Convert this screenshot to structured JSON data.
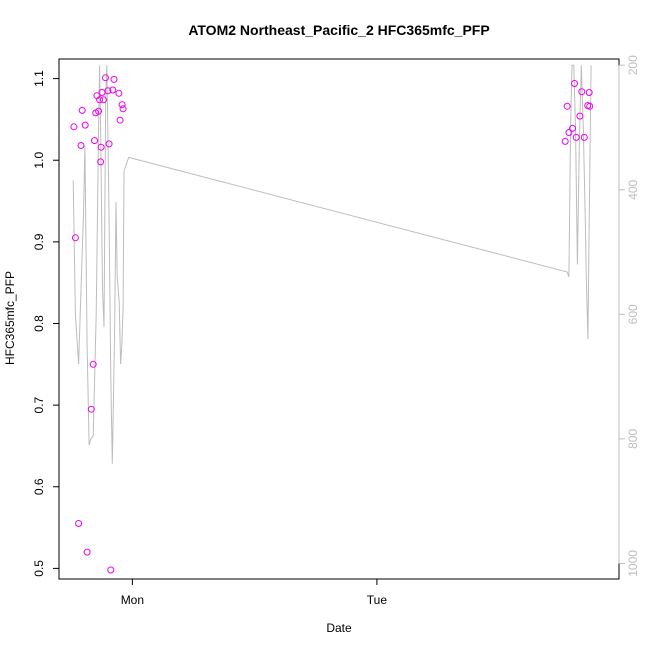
{
  "chart_data": {
    "type": "scatter",
    "title": "ATOM2 Northeast_Pacific_2 HFC365mfc_PFP",
    "xlabel": "Date",
    "ylabel": "HFC365mfc_PFP",
    "x_unit": "days since Sunday 00:00",
    "xlim": [
      0.7,
      2.99
    ],
    "ylim": [
      0.487,
      1.124
    ],
    "x_ticks": [
      {
        "value": 1.0,
        "label": "Mon"
      },
      {
        "value": 2.0,
        "label": "Tue"
      }
    ],
    "y_ticks": [
      0.5,
      0.6,
      0.7,
      0.8,
      0.9,
      1.0,
      1.1
    ],
    "right_axis": {
      "color": "#bdbdbd",
      "ylim": [
        1025,
        190
      ],
      "ticks": [
        200,
        400,
        600,
        800,
        1000
      ]
    },
    "colors": {
      "points": "#ee00ee",
      "line": "#bdbdbd",
      "box": "#000000"
    },
    "series": [
      {
        "type": "scatter",
        "points": [
          [
            0.761,
            1.041
          ],
          [
            0.767,
            0.905
          ],
          [
            0.78,
            0.555
          ],
          [
            0.79,
            1.018
          ],
          [
            0.795,
            1.061
          ],
          [
            0.807,
            1.043
          ],
          [
            0.815,
            0.52
          ],
          [
            0.832,
            0.695
          ],
          [
            0.84,
            0.75
          ],
          [
            0.845,
            1.024
          ],
          [
            0.85,
            1.058
          ],
          [
            0.855,
            1.079
          ],
          [
            0.862,
            1.06
          ],
          [
            0.866,
            1.074
          ],
          [
            0.87,
            0.998
          ],
          [
            0.872,
            1.016
          ],
          [
            0.876,
            1.083
          ],
          [
            0.882,
            1.074
          ],
          [
            0.89,
            1.101
          ],
          [
            0.9,
            1.085
          ],
          [
            0.905,
            1.02
          ],
          [
            0.912,
            0.498
          ],
          [
            0.92,
            1.086
          ],
          [
            0.925,
            1.099
          ],
          [
            0.945,
            1.082
          ],
          [
            0.95,
            1.049
          ],
          [
            0.958,
            1.068
          ],
          [
            0.962,
            1.063
          ],
          [
            2.77,
            1.023
          ],
          [
            2.778,
            1.066
          ],
          [
            2.785,
            1.034
          ],
          [
            2.8,
            1.039
          ],
          [
            2.808,
            1.094
          ],
          [
            2.815,
            1.028
          ],
          [
            2.83,
            1.054
          ],
          [
            2.838,
            1.084
          ],
          [
            2.848,
            1.028
          ],
          [
            2.862,
            1.067
          ],
          [
            2.87,
            1.066
          ],
          [
            2.868,
            1.083
          ]
        ]
      },
      {
        "type": "line",
        "axis": "right",
        "points": [
          [
            0.758,
            385
          ],
          [
            0.767,
            600
          ],
          [
            0.78,
            680
          ],
          [
            0.795,
            500
          ],
          [
            0.8,
            440
          ],
          [
            0.806,
            330
          ],
          [
            0.815,
            650
          ],
          [
            0.823,
            810
          ],
          [
            0.83,
            800
          ],
          [
            0.84,
            795
          ],
          [
            0.852,
            600
          ],
          [
            0.862,
            300
          ],
          [
            0.866,
            200
          ],
          [
            0.87,
            300
          ],
          [
            0.878,
            560
          ],
          [
            0.884,
            620
          ],
          [
            0.891,
            250
          ],
          [
            0.896,
            200
          ],
          [
            0.905,
            450
          ],
          [
            0.912,
            700
          ],
          [
            0.918,
            840
          ],
          [
            0.927,
            640
          ],
          [
            0.933,
            420
          ],
          [
            0.938,
            540
          ],
          [
            0.946,
            580
          ],
          [
            0.952,
            680
          ],
          [
            0.957,
            650
          ],
          [
            0.962,
            588
          ],
          [
            0.966,
            370
          ],
          [
            0.985,
            348
          ],
          [
            2.778,
            532
          ],
          [
            2.785,
            540
          ],
          [
            2.792,
            300
          ],
          [
            2.798,
            200
          ],
          [
            2.805,
            200
          ],
          [
            2.812,
            300
          ],
          [
            2.82,
            520
          ],
          [
            2.828,
            320
          ],
          [
            2.836,
            200
          ],
          [
            2.844,
            300
          ],
          [
            2.852,
            450
          ],
          [
            2.856,
            535
          ],
          [
            2.863,
            640
          ],
          [
            2.87,
            380
          ],
          [
            2.876,
            200
          ]
        ]
      }
    ]
  }
}
